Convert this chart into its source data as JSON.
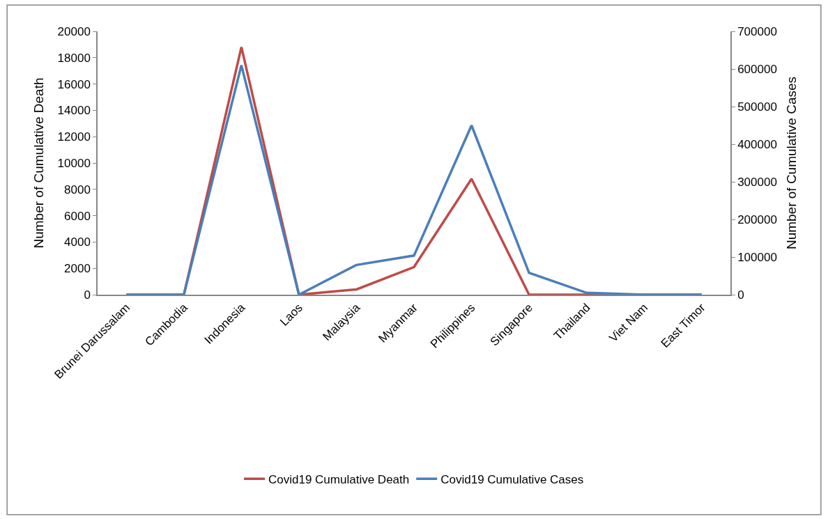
{
  "chart_data": {
    "type": "line",
    "categories": [
      "Brunei Darussalam",
      "Cambodia",
      "Indonesia",
      "Laos",
      "Malaysia",
      "Myanmar",
      "Philippines",
      "Singapore",
      "Thailand",
      "Viet Nam",
      "East Timor"
    ],
    "ylabel": "Number of Cumulative Death",
    "y2label": "Number of Cumulative Cases",
    "ylim": [
      0,
      20000
    ],
    "yticks": [
      0,
      2000,
      4000,
      6000,
      8000,
      10000,
      12000,
      14000,
      16000,
      18000,
      20000
    ],
    "y2lim": [
      0,
      700000
    ],
    "y2ticks": [
      0,
      100000,
      200000,
      300000,
      400000,
      500000,
      600000,
      700000
    ],
    "series": [
      {
        "name": "Covid19 Cumulative Death",
        "color": "#be4b48",
        "values": [
          0,
          0,
          18800,
          0,
          400,
          2100,
          8800,
          0,
          0,
          0,
          0
        ]
      },
      {
        "name": "Covid19 Cumulative Cases",
        "color": "#4a7ebb",
        "axis": "y2",
        "values": [
          0,
          0,
          610000,
          0,
          79000,
          104000,
          450000,
          58000,
          5000,
          0,
          0
        ]
      }
    ],
    "legend": "bottom",
    "marker": "none",
    "line_style": "solid"
  }
}
